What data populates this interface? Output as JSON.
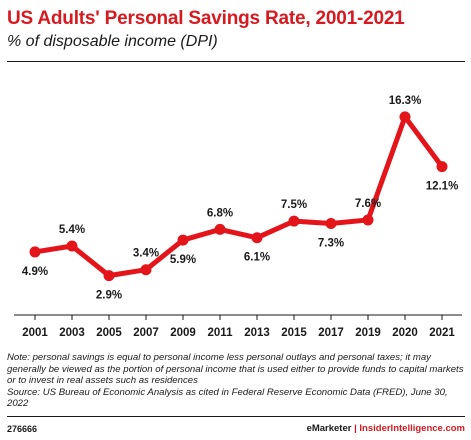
{
  "header": {
    "title": "US Adults' Personal Savings Rate, 2001-2021",
    "subtitle": "% of disposable income (DPI)"
  },
  "chart_data": {
    "type": "line",
    "title": "US Adults' Personal Savings Rate, 2001-2021",
    "subtitle": "% of disposable income (DPI)",
    "xlabel": "",
    "ylabel": "",
    "categories": [
      "2001",
      "2003",
      "2005",
      "2007",
      "2009",
      "2011",
      "2013",
      "2015",
      "2017",
      "2019",
      "2020",
      "2021"
    ],
    "series": [
      {
        "values": [
          4.9,
          5.4,
          2.9,
          3.4,
          5.9,
          6.8,
          6.1,
          7.5,
          7.3,
          7.6,
          16.3,
          12.1
        ],
        "labels": [
          "4.9%",
          "5.4%",
          "2.9%",
          "3.4%",
          "5.9%",
          "6.8%",
          "6.1%",
          "7.5%",
          "7.3%",
          "7.6%",
          "16.3%",
          "12.1%"
        ],
        "label_positions": [
          "below",
          "above",
          "below",
          "above",
          "below",
          "above",
          "below",
          "above",
          "below",
          "above",
          "above",
          "below"
        ],
        "color": "#e4141b"
      }
    ],
    "ylim": [
      0,
      17.5
    ],
    "grid": false,
    "legend": "none"
  },
  "notes": {
    "note": "Note: personal savings is equal to personal income less personal outlays and personal taxes; it may generally be viewed as the portion of personal income that is used either to provide funds to capital markets or to invest in real assets such as residences",
    "source": "Source: US Bureau of Economic Analysis as cited in Federal Reserve Economic Data (FRED), June 30, 2022"
  },
  "footer": {
    "chart_id": "276666",
    "brand_name": "eMarketer",
    "separator": "|",
    "brand_site": "InsiderIntelligence.com"
  },
  "colors": {
    "accent": "#d71920",
    "line": "#e4141b",
    "text": "#1a1a1a"
  }
}
